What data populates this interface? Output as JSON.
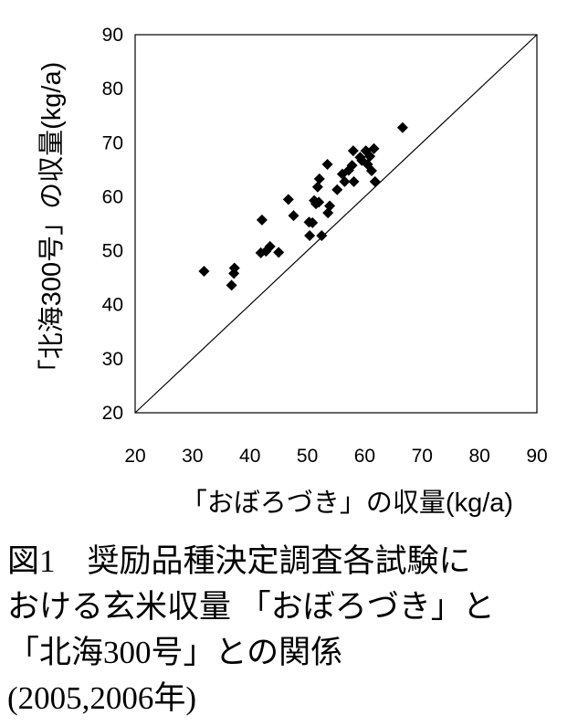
{
  "chart_data": {
    "type": "scatter",
    "xlabel": "「おぼろづき」の収量(kg/a)",
    "ylabel": "「北海300号」の収量(kg/a)",
    "xlim": [
      20,
      90
    ],
    "ylim": [
      20,
      90
    ],
    "xticks": [
      "20",
      "30",
      "40",
      "50",
      "60",
      "70",
      "80",
      "90"
    ],
    "yticks": [
      "20",
      "30",
      "40",
      "50",
      "60",
      "70",
      "80",
      "90"
    ],
    "reference_line": "1:1",
    "grid": false,
    "marker": "diamond",
    "points": [
      {
        "x": 32.0,
        "y": 46.2
      },
      {
        "x": 36.8,
        "y": 43.6
      },
      {
        "x": 37.2,
        "y": 45.8
      },
      {
        "x": 37.3,
        "y": 46.8
      },
      {
        "x": 41.9,
        "y": 49.6
      },
      {
        "x": 42.1,
        "y": 55.7
      },
      {
        "x": 42.8,
        "y": 49.9
      },
      {
        "x": 43.5,
        "y": 50.8
      },
      {
        "x": 45.0,
        "y": 49.7
      },
      {
        "x": 46.7,
        "y": 59.5
      },
      {
        "x": 47.6,
        "y": 56.5
      },
      {
        "x": 50.3,
        "y": 55.3
      },
      {
        "x": 50.4,
        "y": 52.8
      },
      {
        "x": 50.9,
        "y": 55.2
      },
      {
        "x": 51.2,
        "y": 59.3
      },
      {
        "x": 51.5,
        "y": 58.7
      },
      {
        "x": 51.8,
        "y": 61.8
      },
      {
        "x": 52.0,
        "y": 59.0
      },
      {
        "x": 52.1,
        "y": 63.3
      },
      {
        "x": 52.5,
        "y": 52.8
      },
      {
        "x": 53.5,
        "y": 66.0
      },
      {
        "x": 53.6,
        "y": 57.0
      },
      {
        "x": 53.9,
        "y": 58.3
      },
      {
        "x": 55.2,
        "y": 61.3
      },
      {
        "x": 56.1,
        "y": 64.2
      },
      {
        "x": 56.5,
        "y": 62.8
      },
      {
        "x": 57.2,
        "y": 64.9
      },
      {
        "x": 57.8,
        "y": 65.8
      },
      {
        "x": 58.0,
        "y": 68.5
      },
      {
        "x": 58.1,
        "y": 62.8
      },
      {
        "x": 59.2,
        "y": 67.3
      },
      {
        "x": 59.5,
        "y": 66.7
      },
      {
        "x": 60.2,
        "y": 68.5
      },
      {
        "x": 60.5,
        "y": 66.0
      },
      {
        "x": 60.9,
        "y": 67.5
      },
      {
        "x": 61.2,
        "y": 64.8
      },
      {
        "x": 61.6,
        "y": 68.9
      },
      {
        "x": 61.8,
        "y": 62.8
      },
      {
        "x": 66.6,
        "y": 72.8
      }
    ]
  },
  "caption": {
    "line1": "図1　奨励品種決定調査各試験に",
    "line2": "おける玄米収量 「おぼろづき」と",
    "line3": "「北海300号」との関係",
    "line4": "(2005,2006年)"
  }
}
